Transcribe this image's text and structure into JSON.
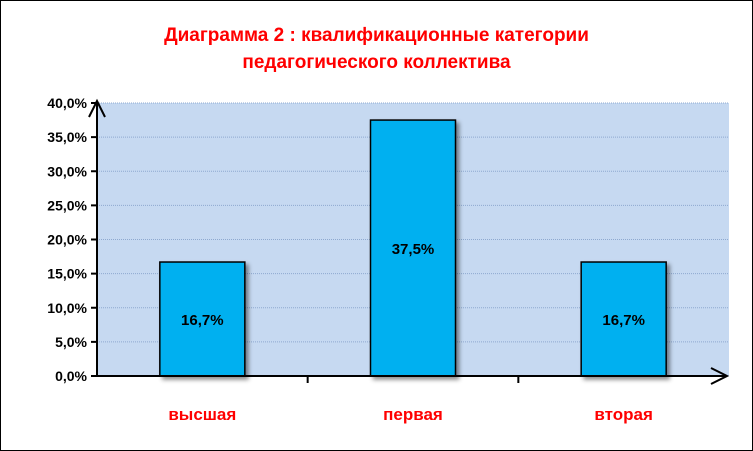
{
  "chart_data": {
    "type": "bar",
    "title_line1": "Диаграмма 2 : квалификационные категории",
    "title_line2": "педагогического коллектива",
    "categories": [
      "высшая",
      "первая",
      "вторая"
    ],
    "values": [
      16.7,
      37.5,
      16.7
    ],
    "data_labels": [
      "16,7%",
      "37,5%",
      "16,7%"
    ],
    "ylim": [
      0,
      40
    ],
    "yticks": [
      0,
      5,
      10,
      15,
      20,
      25,
      30,
      35,
      40
    ],
    "ytick_labels": [
      "0,0%",
      "5,0%",
      "10,0%",
      "15,0%",
      "20,0%",
      "25,0%",
      "30,0%",
      "35,0%",
      "40,0%"
    ],
    "grid": true,
    "legend": "none",
    "colors": {
      "bar": "#00b0f0",
      "plot_bg": "#c6d9f1",
      "title": "#ff0000",
      "category_labels": "#ff0000"
    }
  }
}
